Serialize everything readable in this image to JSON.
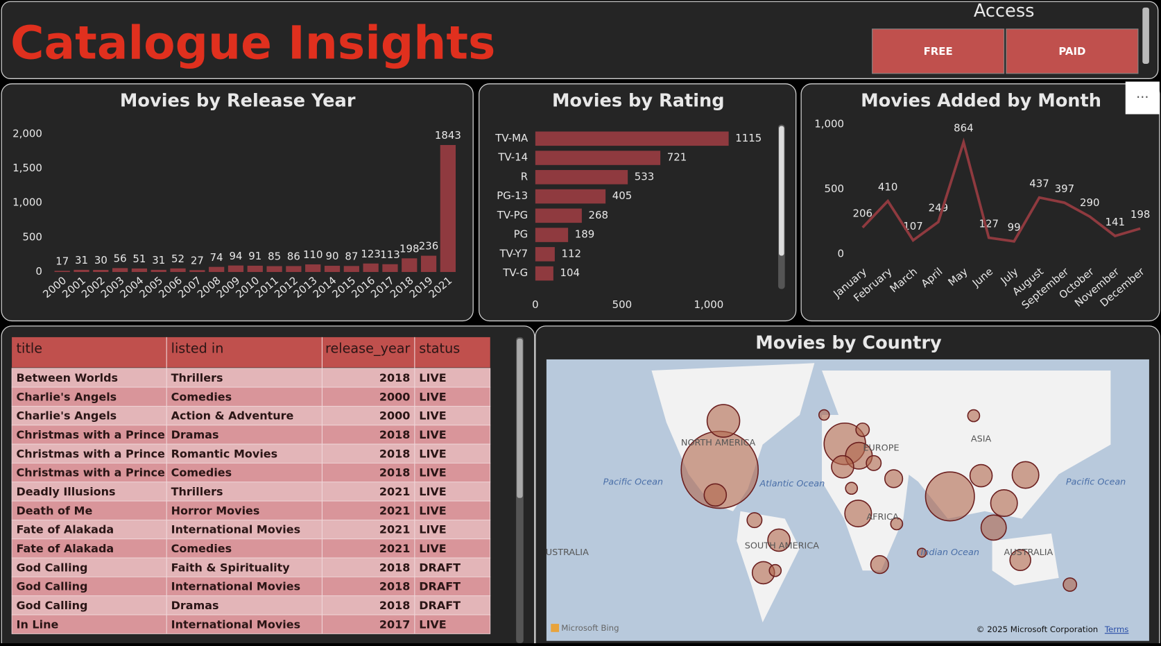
{
  "header": {
    "title": "Catalogue Insights",
    "access_label": "Access",
    "buttons": [
      "FREE",
      "PAID"
    ]
  },
  "chart_data": [
    {
      "type": "bar",
      "title": "Movies by Release Year",
      "categories": [
        "2000",
        "2001",
        "2002",
        "2003",
        "2004",
        "2005",
        "2006",
        "2007",
        "2008",
        "2009",
        "2010",
        "2011",
        "2012",
        "2013",
        "2014",
        "2015",
        "2016",
        "2017",
        "2018",
        "2019",
        "2021"
      ],
      "values": [
        17,
        31,
        30,
        56,
        51,
        31,
        52,
        27,
        74,
        94,
        91,
        85,
        86,
        110,
        90,
        87,
        123,
        113,
        198,
        236,
        1843
      ],
      "color": "#8f3a3f",
      "ylim": [
        0,
        2000
      ],
      "yticks": [
        0,
        500,
        {
          "value": 1000,
          "label": "1,000"
        },
        {
          "value": 1500,
          "label": "1,500"
        },
        {
          "value": 2000,
          "label": "2,000"
        }
      ]
    },
    {
      "type": "hbar",
      "title": "Movies by Rating",
      "categories": [
        "TV-MA",
        "TV-14",
        "R",
        "PG-13",
        "TV-PG",
        "PG",
        "TV-Y7",
        "TV-G"
      ],
      "values": [
        1115,
        721,
        533,
        405,
        268,
        189,
        112,
        104
      ],
      "color": "#8f3a3f",
      "xlim": [
        0,
        1200
      ],
      "xticks": [
        0,
        500,
        {
          "value": 1000,
          "label": "1,000"
        }
      ]
    },
    {
      "type": "line",
      "title": "Movies Added by Month",
      "categories": [
        "January",
        "February",
        "March",
        "April",
        "May",
        "June",
        "July",
        "August",
        "September",
        "October",
        "November",
        "December"
      ],
      "values": [
        206,
        410,
        107,
        249,
        864,
        127,
        99,
        437,
        397,
        290,
        141,
        198
      ],
      "color": "#8f3a3f",
      "ylim": [
        0,
        1000
      ],
      "yticks": [
        0,
        500,
        {
          "value": 1000,
          "label": "1,000"
        }
      ]
    }
  ],
  "table": {
    "columns": [
      "title",
      "listed in",
      "release_year",
      "status"
    ],
    "rows": [
      [
        "Between Worlds",
        "Thrillers",
        2018,
        "LIVE"
      ],
      [
        "Charlie's Angels",
        "Comedies",
        2000,
        "LIVE"
      ],
      [
        "Charlie's Angels",
        "Action & Adventure",
        2000,
        "LIVE"
      ],
      [
        "Christmas with a Prince",
        "Dramas",
        2018,
        "LIVE"
      ],
      [
        "Christmas with a Prince",
        "Romantic Movies",
        2018,
        "LIVE"
      ],
      [
        "Christmas with a Prince",
        "Comedies",
        2018,
        "LIVE"
      ],
      [
        "Deadly Illusions",
        "Thrillers",
        2021,
        "LIVE"
      ],
      [
        "Death of Me",
        "Horror Movies",
        2021,
        "LIVE"
      ],
      [
        "Fate of Alakada",
        "International Movies",
        2021,
        "LIVE"
      ],
      [
        "Fate of Alakada",
        "Comedies",
        2021,
        "LIVE"
      ],
      [
        "God Calling",
        "Faith & Spirituality",
        2018,
        "DRAFT"
      ],
      [
        "God Calling",
        "International Movies",
        2018,
        "DRAFT"
      ],
      [
        "God Calling",
        "Dramas",
        2018,
        "DRAFT"
      ],
      [
        "In Line",
        "International Movies",
        2017,
        "LIVE"
      ]
    ]
  },
  "map": {
    "title": "Movies by Country",
    "labels": [
      "NORTH AMERICA",
      "EUROPE",
      "ASIA",
      "AFRICA",
      "SOUTH AMERICA",
      "AUSTRALIA",
      "USTRALIA",
      "Pacific Ocean",
      "Atlantic Ocean",
      "Indian Ocean",
      "Pacific Ocean"
    ],
    "attribution": "Microsoft Bing",
    "copyright": "© 2025 Microsoft Corporation",
    "terms": "Terms"
  }
}
